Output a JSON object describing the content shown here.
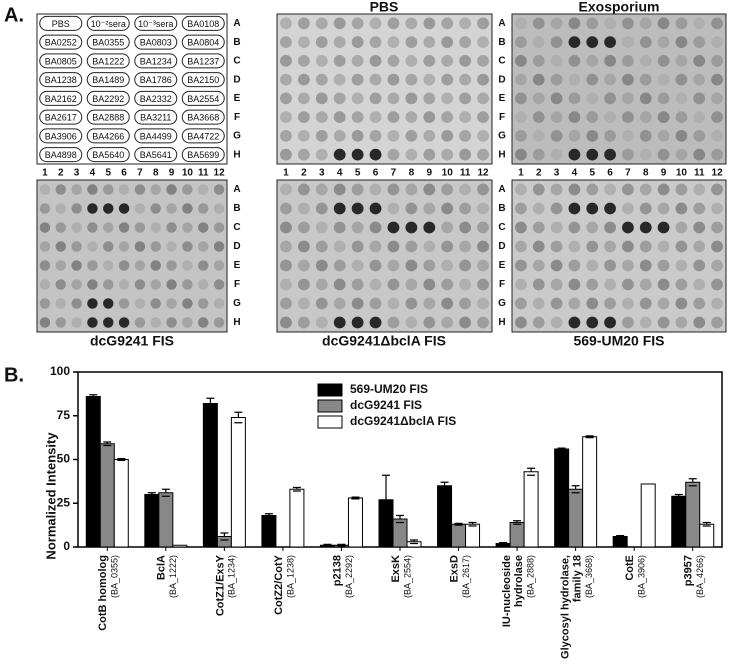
{
  "figure_a": {
    "label": "A.",
    "panel_titles": [
      "PBS",
      "Exosporium",
      "dcG9241 FIS",
      "dcG9241ΔbclA FIS",
      "569-UM20 FIS"
    ],
    "row_letters": [
      "A",
      "B",
      "C",
      "D",
      "E",
      "F",
      "G",
      "H"
    ],
    "col_numbers": [
      "1",
      "2",
      "3",
      "4",
      "5",
      "6",
      "7",
      "8",
      "9",
      "10",
      "11",
      "12"
    ],
    "layout_table": [
      [
        "PBS",
        "10⁻²sera",
        "10⁻³sera",
        "BA0108"
      ],
      [
        "BA0252",
        "BA0355",
        "BA0803",
        "BA0804"
      ],
      [
        "BA0805",
        "BA1222",
        "BA1234",
        "BA1237"
      ],
      [
        "BA1238",
        "BA1489",
        "BA1786",
        "BA2150"
      ],
      [
        "BA2162",
        "BA2292",
        "BA2332",
        "BA2554"
      ],
      [
        "BA2617",
        "BA2888",
        "BA3211",
        "BA3668"
      ],
      [
        "BA3906",
        "BA4266",
        "BA4499",
        "BA4722"
      ],
      [
        "BA4898",
        "BA5640",
        "BA5641",
        "BA5699"
      ]
    ]
  },
  "chart_data": {
    "type": "bar",
    "label": "B.",
    "y_label": "Normalized Intensity",
    "categories": [
      [
        "CotB homolog",
        "(BA_0355)"
      ],
      [
        "BclA",
        "(BA_1222)"
      ],
      [
        "CotZ1/ExsY",
        "(BA_1234)"
      ],
      [
        "CotZ2/CotY",
        "(BA_1238)"
      ],
      [
        "p2138",
        "(BA_2292)"
      ],
      [
        "ExsK",
        "(BA_2554)"
      ],
      [
        "ExsD",
        "(BA_2617)"
      ],
      [
        "IU-nucleoside",
        "hydrolase",
        "(BA_2888)"
      ],
      [
        "Glycosyl hydrolase,",
        "family 18",
        "(BA_3668)"
      ],
      [
        "CotE",
        "(BA_3906)"
      ],
      [
        "p3957",
        "(BA_4266)"
      ]
    ],
    "series": [
      {
        "name": "569-UM20 FIS",
        "color": "#000000",
        "values": [
          86,
          30,
          82,
          18,
          1,
          27,
          35,
          2,
          56,
          6,
          29
        ],
        "errors": [
          1,
          1,
          3,
          1,
          0.5,
          14,
          2,
          0.5,
          0.5,
          0.5,
          1
        ]
      },
      {
        "name": "dcG9241 FIS",
        "color": "#888888",
        "values": [
          59,
          31,
          6,
          0,
          1,
          16,
          13,
          14,
          33,
          0,
          37
        ],
        "errors": [
          1,
          2,
          2,
          0,
          0.5,
          2,
          0.5,
          1,
          2,
          0,
          2
        ]
      },
      {
        "name": "dcG9241ΔbclA FIS",
        "color": "#ffffff",
        "values": [
          50,
          1,
          74,
          33,
          28,
          3,
          13,
          43,
          63,
          36,
          13
        ],
        "errors": [
          0.5,
          0,
          3,
          1,
          0.5,
          1,
          1,
          2,
          0.5,
          0,
          1
        ]
      }
    ],
    "ylim": [
      0,
      100
    ],
    "yticks": [
      0,
      25,
      50,
      75,
      100
    ],
    "legend": "top-center"
  }
}
